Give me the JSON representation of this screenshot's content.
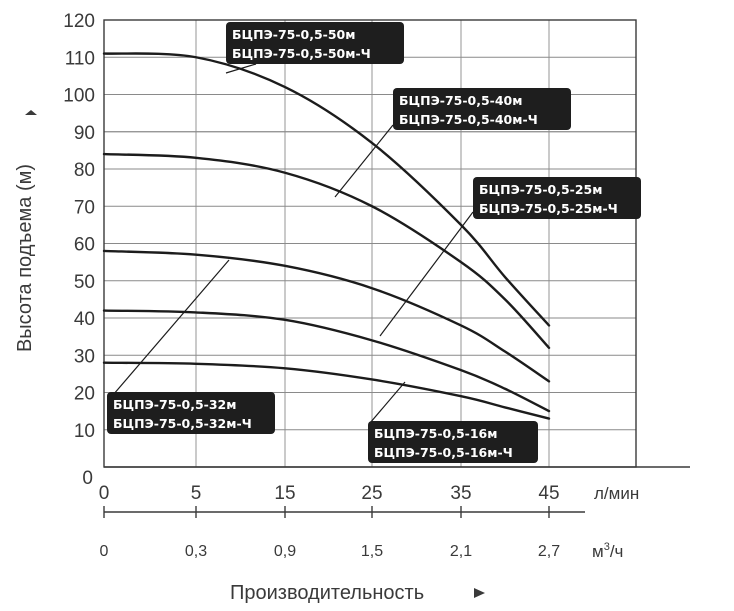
{
  "chart_data": {
    "type": "line",
    "ylabel": "Высота подъема (м)",
    "xlabel": "Производительность",
    "y_ticks": [
      "0",
      "10",
      "20",
      "30",
      "40",
      "50",
      "60",
      "70",
      "80",
      "90",
      "100",
      "110",
      "120"
    ],
    "ylim": [
      0,
      120
    ],
    "x_ticks": [
      "0",
      "5",
      "15",
      "25",
      "35",
      "45"
    ],
    "x_unit": "л/мин",
    "x2_ticks": [
      "0",
      "0,3",
      "0,9",
      "1,5",
      "2,1",
      "2,7"
    ],
    "x2_unit_main": "м",
    "x2_unit_sup": "3",
    "x2_unit_tail": "/ч",
    "grid": true,
    "series": [
      {
        "labels": [
          "БЦПЭ-75-0,5-50м",
          "БЦПЭ-75-0,5-50м-Ч"
        ],
        "x": [
          0,
          5,
          15,
          25,
          35,
          40,
          45
        ],
        "y": [
          111,
          110,
          102,
          87,
          65,
          51,
          38
        ]
      },
      {
        "labels": [
          "БЦПЭ-75-0,5-40м",
          "БЦПЭ-75-0,5-40м-Ч"
        ],
        "x": [
          0,
          5,
          15,
          25,
          35,
          40,
          45
        ],
        "y": [
          84,
          83,
          79,
          70,
          55,
          45,
          32
        ]
      },
      {
        "labels": [
          "БЦПЭ-75-0,5-32м",
          "БЦПЭ-75-0,5-32м-Ч"
        ],
        "x": [
          0,
          5,
          15,
          25,
          35,
          40,
          45
        ],
        "y": [
          58,
          57,
          54,
          48,
          38,
          31,
          23
        ]
      },
      {
        "labels": [
          "БЦПЭ-75-0,5-25м",
          "БЦПЭ-75-0,5-25м-Ч"
        ],
        "x": [
          0,
          5,
          15,
          25,
          35,
          40,
          45
        ],
        "y": [
          42,
          41.5,
          39.5,
          34,
          26,
          21,
          15
        ]
      },
      {
        "labels": [
          "БЦПЭ-75-0,5-16м",
          "БЦПЭ-75-0,5-16м-Ч"
        ],
        "x": [
          0,
          5,
          15,
          25,
          35,
          40,
          45
        ],
        "y": [
          28,
          27.7,
          26.5,
          23.5,
          19,
          16,
          13
        ]
      }
    ]
  }
}
